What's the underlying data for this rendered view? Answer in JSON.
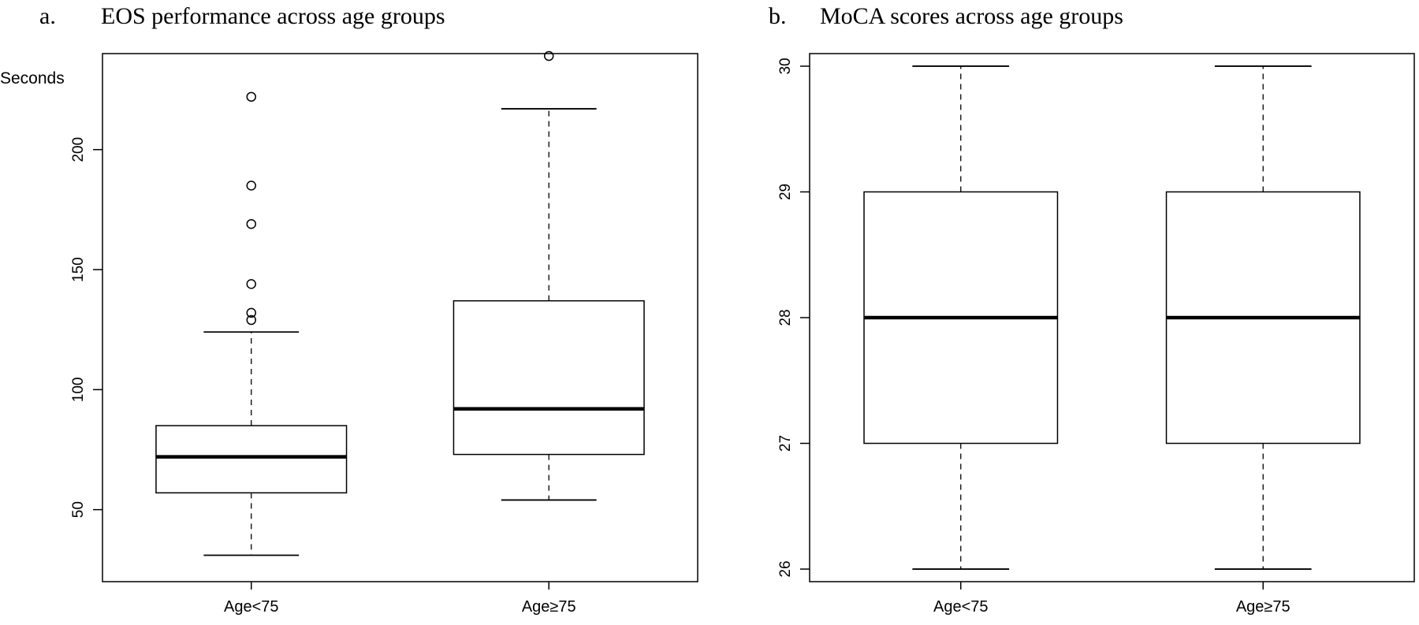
{
  "chart_data": [
    {
      "type": "box",
      "panel_label": "a.",
      "title": "EOS performance across age groups",
      "xlabel": "",
      "ylabel": "Seconds",
      "ylim": [
        20,
        240
      ],
      "yticks": [
        50,
        100,
        150,
        200
      ],
      "categories": [
        "Age<75",
        "Age≥75"
      ],
      "boxes": [
        {
          "category": "Age<75",
          "whisker_low": 31,
          "q1": 57,
          "median": 72,
          "q3": 85,
          "whisker_high": 124,
          "outliers": [
            129,
            132,
            144,
            169,
            185,
            222
          ]
        },
        {
          "category": "Age≥75",
          "whisker_low": 54,
          "q1": 73,
          "median": 92,
          "q3": 137,
          "whisker_high": 217,
          "outliers": [
            239
          ]
        }
      ],
      "grid": false,
      "legend": "none"
    },
    {
      "type": "box",
      "panel_label": "b.",
      "title": "MoCA scores across age groups",
      "xlabel": "",
      "ylabel": "",
      "ylim": [
        25.9,
        30.1
      ],
      "yticks": [
        26,
        27,
        28,
        29,
        30
      ],
      "categories": [
        "Age<75",
        "Age≥75"
      ],
      "boxes": [
        {
          "category": "Age<75",
          "whisker_low": 26,
          "q1": 27,
          "median": 28,
          "q3": 29,
          "whisker_high": 30,
          "outliers": []
        },
        {
          "category": "Age≥75",
          "whisker_low": 26,
          "q1": 27,
          "median": 28,
          "q3": 29,
          "whisker_high": 30,
          "outliers": []
        }
      ],
      "grid": false,
      "legend": "none"
    }
  ]
}
